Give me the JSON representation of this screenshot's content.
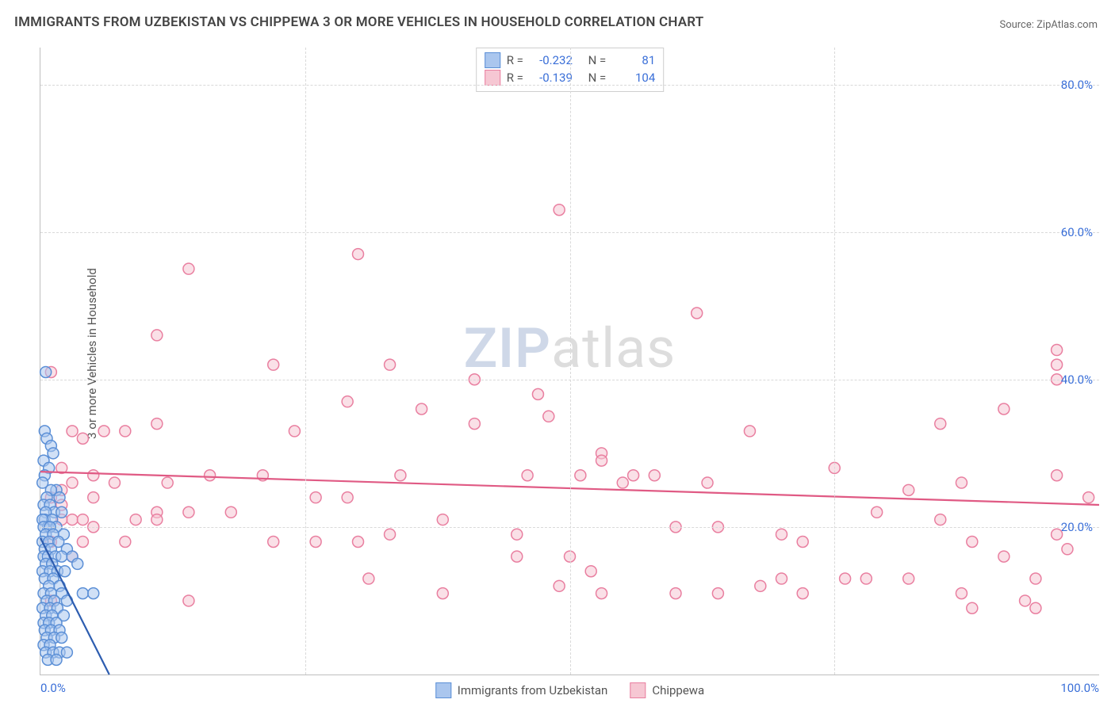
{
  "title": "IMMIGRANTS FROM UZBEKISTAN VS CHIPPEWA 3 OR MORE VEHICLES IN HOUSEHOLD CORRELATION CHART",
  "source_prefix": "Source: ",
  "source_link": "ZipAtlas.com",
  "watermark_zip": "ZIP",
  "watermark_atlas": "atlas",
  "ylabel": "3 or more Vehicles in Household",
  "chart": {
    "type": "scatter",
    "background_color": "#ffffff",
    "grid_color": "#d9d9d9",
    "axis_color": "#bfbfbf",
    "tick_label_color": "#3a6fd8",
    "xlim": [
      0,
      100
    ],
    "ylim": [
      0,
      85
    ],
    "y_ticks": [
      20,
      40,
      60,
      80
    ],
    "y_tick_labels": [
      "20.0%",
      "40.0%",
      "60.0%",
      "80.0%"
    ],
    "x_ticks": [
      25,
      50,
      75
    ],
    "x_corner_labels": [
      "0.0%",
      "100.0%"
    ],
    "marker_radius": 7,
    "marker_stroke_width": 1.5,
    "trend_line_width": 2.2
  },
  "legend_stats": {
    "rows": [
      {
        "swatch_fill": "#aac6ee",
        "swatch_stroke": "#5b8fd6",
        "R": "-0.232",
        "N": "81"
      },
      {
        "swatch_fill": "#f6c7d3",
        "swatch_stroke": "#e97fa0",
        "R": "-0.139",
        "N": "104"
      }
    ],
    "R_label": "R =",
    "N_label": "N ="
  },
  "bottom_legend": {
    "series1": {
      "label": "Immigrants from Uzbekistan",
      "fill": "#aac6ee",
      "stroke": "#5b8fd6"
    },
    "series2": {
      "label": "Chippewa",
      "fill": "#f6c7d3",
      "stroke": "#e97fa0"
    }
  },
  "series": {
    "blue": {
      "fill": "#aac6ee",
      "stroke": "#5b8fd6",
      "trend_color": "#2d5db0",
      "trend_dash_color": "#9fb5d6",
      "trend": {
        "x1": 0,
        "y1": 18.5,
        "x2": 6.5,
        "y2": 0
      },
      "points": [
        [
          0.5,
          41
        ],
        [
          0.4,
          33
        ],
        [
          0.6,
          32
        ],
        [
          1.0,
          31
        ],
        [
          1.2,
          30
        ],
        [
          0.3,
          29
        ],
        [
          0.8,
          28
        ],
        [
          1.5,
          25
        ],
        [
          0.4,
          27
        ],
        [
          0.2,
          26
        ],
        [
          1.0,
          25
        ],
        [
          0.6,
          24
        ],
        [
          1.8,
          24
        ],
        [
          0.3,
          23
        ],
        [
          0.9,
          23
        ],
        [
          1.3,
          22
        ],
        [
          0.5,
          22
        ],
        [
          2.0,
          22
        ],
        [
          0.4,
          21
        ],
        [
          1.1,
          21
        ],
        [
          0.2,
          21
        ],
        [
          0.7,
          20
        ],
        [
          1.5,
          20
        ],
        [
          0.3,
          20
        ],
        [
          0.9,
          20
        ],
        [
          2.2,
          19
        ],
        [
          0.5,
          19
        ],
        [
          1.2,
          19
        ],
        [
          0.2,
          18
        ],
        [
          0.8,
          18
        ],
        [
          1.7,
          18
        ],
        [
          0.4,
          17
        ],
        [
          1.0,
          17
        ],
        [
          2.5,
          17
        ],
        [
          0.3,
          16
        ],
        [
          0.7,
          16
        ],
        [
          1.4,
          16
        ],
        [
          2.0,
          16
        ],
        [
          3.0,
          16
        ],
        [
          3.5,
          15
        ],
        [
          0.5,
          15
        ],
        [
          1.1,
          15
        ],
        [
          0.2,
          14
        ],
        [
          0.9,
          14
        ],
        [
          1.6,
          14
        ],
        [
          2.3,
          14
        ],
        [
          0.4,
          13
        ],
        [
          1.2,
          13
        ],
        [
          0.8,
          12
        ],
        [
          1.8,
          12
        ],
        [
          0.3,
          11
        ],
        [
          1.0,
          11
        ],
        [
          2.0,
          11
        ],
        [
          4.0,
          11
        ],
        [
          5.0,
          11
        ],
        [
          0.6,
          10
        ],
        [
          1.3,
          10
        ],
        [
          2.5,
          10
        ],
        [
          0.2,
          9
        ],
        [
          0.9,
          9
        ],
        [
          1.6,
          9
        ],
        [
          0.5,
          8
        ],
        [
          1.1,
          8
        ],
        [
          2.2,
          8
        ],
        [
          0.3,
          7
        ],
        [
          0.8,
          7
        ],
        [
          1.5,
          7
        ],
        [
          0.4,
          6
        ],
        [
          1.0,
          6
        ],
        [
          1.8,
          6
        ],
        [
          0.6,
          5
        ],
        [
          1.3,
          5
        ],
        [
          2.0,
          5
        ],
        [
          0.3,
          4
        ],
        [
          0.9,
          4
        ],
        [
          0.5,
          3
        ],
        [
          1.2,
          3
        ],
        [
          1.8,
          3
        ],
        [
          2.5,
          3
        ],
        [
          0.7,
          2
        ],
        [
          1.5,
          2
        ]
      ]
    },
    "pink": {
      "fill": "#f6c7d3",
      "stroke": "#e97fa0",
      "trend_color": "#e05a84",
      "trend": {
        "x1": 0,
        "y1": 27.5,
        "x2": 100,
        "y2": 23.0
      },
      "points": [
        [
          49,
          63
        ],
        [
          30,
          57
        ],
        [
          14,
          55
        ],
        [
          62,
          49
        ],
        [
          11,
          46
        ],
        [
          96,
          44
        ],
        [
          22,
          42
        ],
        [
          33,
          42
        ],
        [
          96,
          42
        ],
        [
          1,
          41
        ],
        [
          96,
          40
        ],
        [
          41,
          40
        ],
        [
          47,
          38
        ],
        [
          29,
          37
        ],
        [
          36,
          36
        ],
        [
          91,
          36
        ],
        [
          48,
          35
        ],
        [
          11,
          34
        ],
        [
          3,
          33
        ],
        [
          41,
          34
        ],
        [
          85,
          34
        ],
        [
          6,
          33
        ],
        [
          8,
          33
        ],
        [
          67,
          33
        ],
        [
          24,
          33
        ],
        [
          4,
          32
        ],
        [
          53,
          30
        ],
        [
          53,
          29
        ],
        [
          75,
          28
        ],
        [
          2,
          28
        ],
        [
          16,
          27
        ],
        [
          21,
          27
        ],
        [
          34,
          27
        ],
        [
          46,
          27
        ],
        [
          51,
          27
        ],
        [
          56,
          27
        ],
        [
          55,
          26
        ],
        [
          58,
          27
        ],
        [
          96,
          27
        ],
        [
          7,
          26
        ],
        [
          3,
          26
        ],
        [
          12,
          26
        ],
        [
          63,
          26
        ],
        [
          87,
          26
        ],
        [
          82,
          25
        ],
        [
          26,
          24
        ],
        [
          29,
          24
        ],
        [
          5,
          24
        ],
        [
          99,
          24
        ],
        [
          2,
          23
        ],
        [
          11,
          22
        ],
        [
          14,
          22
        ],
        [
          18,
          22
        ],
        [
          79,
          22
        ],
        [
          3,
          21
        ],
        [
          4,
          21
        ],
        [
          9,
          21
        ],
        [
          11,
          21
        ],
        [
          38,
          21
        ],
        [
          85,
          21
        ],
        [
          5,
          20
        ],
        [
          60,
          20
        ],
        [
          64,
          20
        ],
        [
          33,
          19
        ],
        [
          45,
          19
        ],
        [
          70,
          19
        ],
        [
          96,
          19
        ],
        [
          1,
          18
        ],
        [
          4,
          18
        ],
        [
          8,
          18
        ],
        [
          22,
          18
        ],
        [
          26,
          18
        ],
        [
          30,
          18
        ],
        [
          72,
          18
        ],
        [
          88,
          18
        ],
        [
          3,
          16
        ],
        [
          45,
          16
        ],
        [
          50,
          16
        ],
        [
          91,
          16
        ],
        [
          52,
          14
        ],
        [
          31,
          13
        ],
        [
          70,
          13
        ],
        [
          76,
          13
        ],
        [
          78,
          13
        ],
        [
          82,
          13
        ],
        [
          94,
          13
        ],
        [
          49,
          12
        ],
        [
          68,
          12
        ],
        [
          38,
          11
        ],
        [
          53,
          11
        ],
        [
          60,
          11
        ],
        [
          64,
          11
        ],
        [
          72,
          11
        ],
        [
          87,
          11
        ],
        [
          1,
          10
        ],
        [
          14,
          10
        ],
        [
          93,
          10
        ],
        [
          94,
          9
        ],
        [
          88,
          9
        ],
        [
          97,
          17
        ],
        [
          5,
          27
        ],
        [
          2,
          25
        ],
        [
          1,
          24
        ],
        [
          2,
          21
        ]
      ]
    }
  }
}
